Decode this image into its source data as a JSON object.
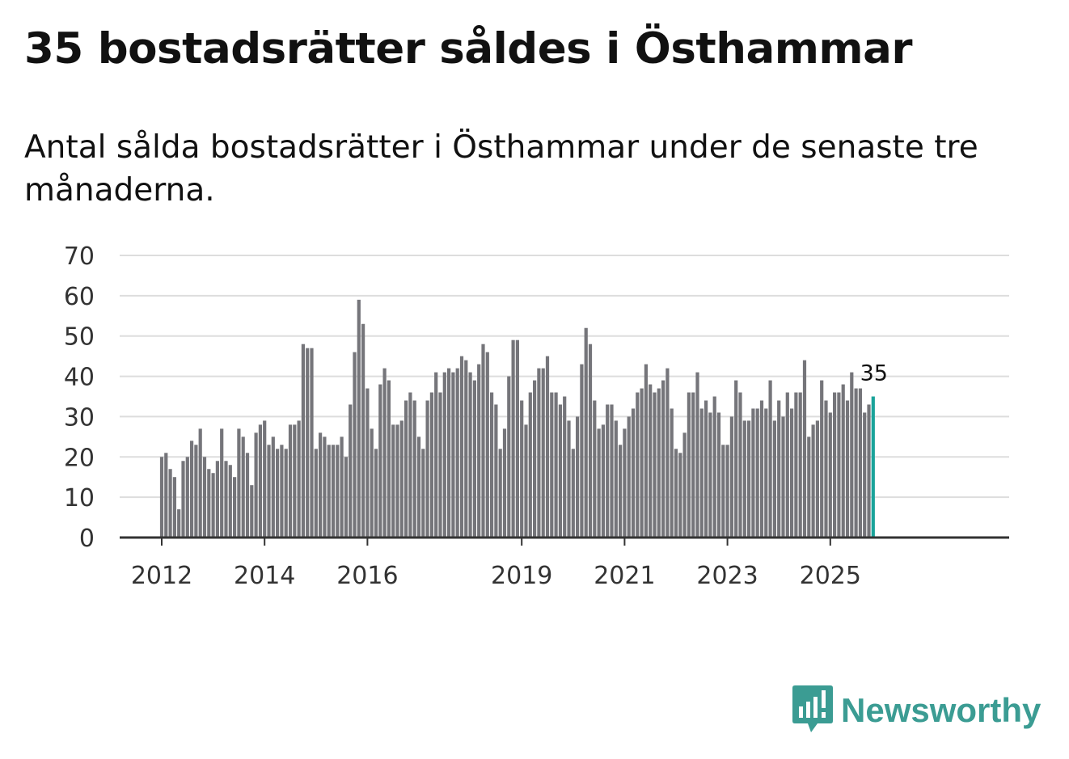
{
  "title": "35 bostadsrätter såldes i Östhammar",
  "subtitle": "Antal sålda bostadsrätter i Östhammar under de senaste tre månaderna.",
  "brand": {
    "name": "Newsworthy",
    "color": "#3b9c93",
    "icon": "bar-chart-speech-bubble-icon"
  },
  "colors": {
    "bar": "#75757a",
    "highlight": "#1aa39a",
    "grid": "#dddddd",
    "axis": "#333333"
  },
  "chart_data": {
    "type": "bar",
    "title": "35 bostadsrätter såldes i Östhammar",
    "xlabel": "",
    "ylabel": "",
    "ylim": [
      0,
      70
    ],
    "yticks": [
      0,
      10,
      20,
      30,
      40,
      50,
      60,
      70
    ],
    "xticks": [
      {
        "label": "2012",
        "index": 0
      },
      {
        "label": "2014",
        "index": 24
      },
      {
        "label": "2016",
        "index": 48
      },
      {
        "label": "2019",
        "index": 84
      },
      {
        "label": "2021",
        "index": 108
      },
      {
        "label": "2023",
        "index": 132
      },
      {
        "label": "2025",
        "index": 156
      }
    ],
    "start": "2012-01",
    "grid": true,
    "highlight_last": true,
    "last_label": "35",
    "values": [
      20,
      21,
      17,
      15,
      7,
      19,
      20,
      24,
      23,
      27,
      20,
      17,
      16,
      19,
      27,
      19,
      18,
      15,
      27,
      25,
      21,
      13,
      26,
      28,
      29,
      23,
      25,
      22,
      23,
      22,
      28,
      28,
      29,
      48,
      47,
      47,
      22,
      26,
      25,
      23,
      23,
      23,
      25,
      20,
      33,
      46,
      59,
      53,
      37,
      27,
      22,
      38,
      42,
      39,
      28,
      28,
      29,
      34,
      36,
      34,
      25,
      22,
      34,
      36,
      41,
      36,
      41,
      42,
      41,
      42,
      45,
      44,
      41,
      39,
      43,
      48,
      46,
      36,
      33,
      22,
      27,
      40,
      49,
      49,
      34,
      28,
      36,
      39,
      42,
      42,
      45,
      36,
      36,
      33,
      35,
      29,
      22,
      30,
      43,
      52,
      48,
      34,
      27,
      28,
      33,
      33,
      29,
      23,
      27,
      30,
      32,
      36,
      37,
      43,
      38,
      36,
      37,
      39,
      42,
      32,
      22,
      21,
      26,
      36,
      36,
      41,
      32,
      34,
      31,
      35,
      31,
      23,
      23,
      30,
      39,
      36,
      29,
      29,
      32,
      32,
      34,
      32,
      39,
      29,
      34,
      30,
      36,
      32,
      36,
      36,
      44,
      25,
      28,
      29,
      39,
      34,
      31,
      36,
      36,
      38,
      34,
      41,
      37,
      37,
      31,
      33,
      35
    ]
  }
}
